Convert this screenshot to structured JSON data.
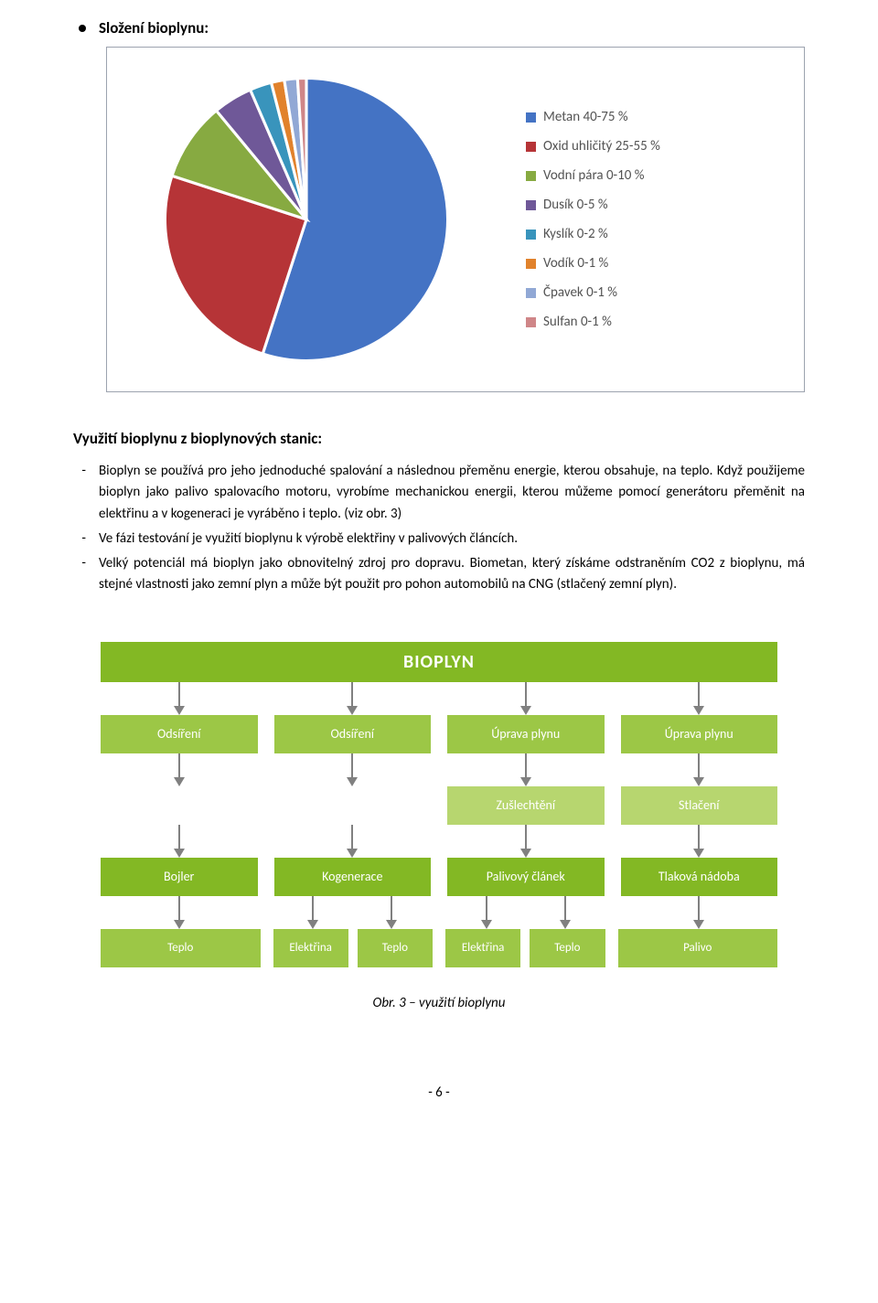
{
  "heading_bullet": "Složení bioplynu:",
  "pie_chart": {
    "type": "pie",
    "background_color": "#ffffff",
    "border_color": "#9ca3af",
    "slice_stroke": "#ffffff",
    "slices": [
      {
        "label": "Metan 40-75 %",
        "value": 55,
        "color": "#4473c4"
      },
      {
        "label": "Oxid uhličitý 25-55 %",
        "value": 25,
        "color": "#b63437"
      },
      {
        "label": "Vodní pára 0-10 %",
        "value": 9,
        "color": "#87aa41"
      },
      {
        "label": "Dusík  0-5 %",
        "value": 4.5,
        "color": "#6f5898"
      },
      {
        "label": "Kyslík 0-2 %",
        "value": 2.5,
        "color": "#3994bc"
      },
      {
        "label": "Vodík  0-1 %",
        "value": 1.5,
        "color": "#e1822c"
      },
      {
        "label": "Čpavek  0-1 %",
        "value": 1.5,
        "color": "#91a8d5"
      },
      {
        "label": "Sulfan 0-1 %",
        "value": 1.0,
        "color": "#cf8688"
      }
    ],
    "legend_fontsize": 15,
    "legend_text_color": "#535353"
  },
  "section_title": "Využití bioplynu z bioplynových stanic:",
  "paragraphs": [
    "Bioplyn se používá pro jeho jednoduché spalování a následnou přeměnu energie, kterou obsahuje, na teplo. Když použijeme bioplyn jako palivo spalovacího motoru, vyrobíme mechanickou energii, kterou můžeme pomocí generátoru přeměnit na elektřinu a v kogeneraci je vyráběno i teplo. (viz obr. 3)",
    "Ve fázi testování je využití bioplynu k výrobě elektřiny v palivových článcích.",
    "Velký potenciál má bioplyn jako obnovitelný zdroj pro dopravu. Biometan, který získáme odstraněním CO2 z bioplynu, má stejné vlastnosti jako zemní plyn a může být použit pro pohon automobilů na CNG (stlačený zemní plyn)."
  ],
  "diagram": {
    "header": {
      "label": "BIOPLYN",
      "color": "#83b824"
    },
    "row1": [
      {
        "label": "Odsíření",
        "color": "#9cc746"
      },
      {
        "label": "Odsíření",
        "color": "#9cc746"
      },
      {
        "label": "Úprava plynu",
        "color": "#9cc746"
      },
      {
        "label": "Úprava plynu",
        "color": "#9cc746"
      }
    ],
    "row2": [
      {
        "label": "Zušlechtění",
        "color": "#b7d66f"
      },
      {
        "label": "Stlačení",
        "color": "#b7d66f"
      }
    ],
    "row3": [
      {
        "label": "Bojler",
        "color": "#83b824"
      },
      {
        "label": "Kogenerace",
        "color": "#83b824"
      },
      {
        "label": "Palivový článek",
        "color": "#83b824"
      },
      {
        "label": "Tlaková nádoba",
        "color": "#83b824"
      }
    ],
    "row4": [
      {
        "label": "Teplo",
        "color": "#9cc746"
      },
      {
        "label": "Elektřina",
        "color": "#9cc746"
      },
      {
        "label": "Teplo",
        "color": "#9cc746"
      },
      {
        "label": "Elektřina",
        "color": "#9cc746"
      },
      {
        "label": "Teplo",
        "color": "#9cc746"
      },
      {
        "label": "Palivo",
        "color": "#9cc746"
      }
    ],
    "arrow_color": "#808080"
  },
  "figure_caption": "Obr. 3 – využití bioplynu",
  "page_number": "- 6 -"
}
